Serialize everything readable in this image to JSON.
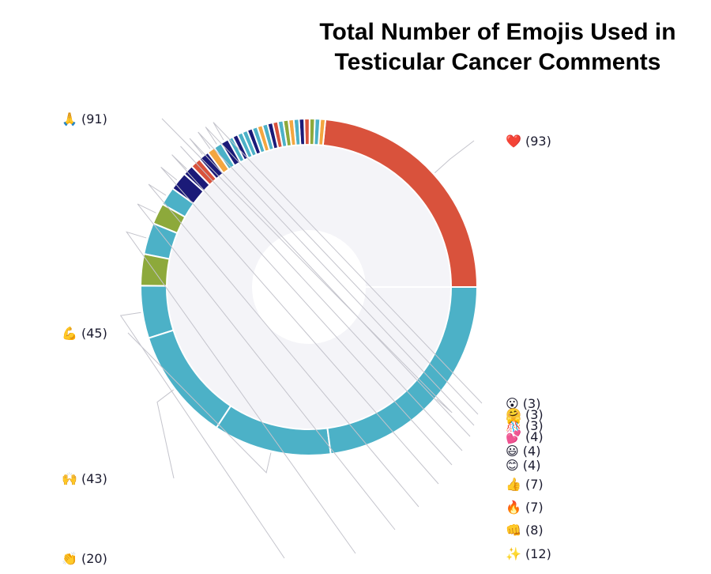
{
  "chart_data": {
    "type": "pie",
    "title_lines": [
      "Total Number of Emojis Used in",
      "Testicular Cancer Comments"
    ],
    "slices": [
      {
        "emoji": "❤️",
        "value": 93,
        "label": "❤️ (93)",
        "color": "#d9523c"
      },
      {
        "emoji": "",
        "value": 2,
        "label": "",
        "color": "#f4a640"
      },
      {
        "emoji": "",
        "value": 2,
        "label": "",
        "color": "#4cb1c7"
      },
      {
        "emoji": "",
        "value": 2,
        "label": "",
        "color": "#8da93b"
      },
      {
        "emoji": "",
        "value": 2,
        "label": "",
        "color": "#d9523c"
      },
      {
        "emoji": "",
        "value": 2,
        "label": "",
        "color": "#1b1a78"
      },
      {
        "emoji": "",
        "value": 2,
        "label": "",
        "color": "#4cb1c7"
      },
      {
        "emoji": "",
        "value": 2,
        "label": "",
        "color": "#f4a640"
      },
      {
        "emoji": "",
        "value": 2,
        "label": "",
        "color": "#8da93b"
      },
      {
        "emoji": "",
        "value": 2,
        "label": "",
        "color": "#4cb1c7"
      },
      {
        "emoji": "",
        "value": 2,
        "label": "",
        "color": "#d9523c"
      },
      {
        "emoji": "",
        "value": 2,
        "label": "",
        "color": "#1b1a78"
      },
      {
        "emoji": "",
        "value": 2,
        "label": "",
        "color": "#4cb1c7"
      },
      {
        "emoji": "",
        "value": 2,
        "label": "",
        "color": "#f4a640"
      },
      {
        "emoji": "",
        "value": 2,
        "label": "",
        "color": "#4cb1c7"
      },
      {
        "emoji": "",
        "value": 2,
        "label": "",
        "color": "#1b1a78"
      },
      {
        "emoji": "",
        "value": 2,
        "label": "",
        "color": "#4cb1c7"
      },
      {
        "emoji": "",
        "value": 2,
        "label": "",
        "color": "#4cb1c7"
      },
      {
        "emoji": "",
        "value": 2,
        "label": "",
        "color": "#1b1a78"
      },
      {
        "emoji": "",
        "value": 2,
        "label": "",
        "color": "#4cb1c7"
      },
      {
        "emoji": "😮",
        "value": 3,
        "label": "😮 (3)",
        "color": "#1b1a78"
      },
      {
        "emoji": "🤗",
        "value": 3,
        "label": "🤗 (3)",
        "color": "#4cb1c7"
      },
      {
        "emoji": "🎊",
        "value": 3,
        "label": "🎊 (3)",
        "color": "#f4a640"
      },
      {
        "emoji": "💕",
        "value": 4,
        "label": "💕 (4)",
        "color": "#1b1a78"
      },
      {
        "emoji": "😃",
        "value": 4,
        "label": "😃 (4)",
        "color": "#d9523c"
      },
      {
        "emoji": "😊",
        "value": 4,
        "label": "😊 (4)",
        "color": "#1b1a78"
      },
      {
        "emoji": "👍",
        "value": 7,
        "label": "👍 (7)",
        "color": "#1b1a78"
      },
      {
        "emoji": "🔥",
        "value": 7,
        "label": "🔥 (7)",
        "color": "#4cb1c7"
      },
      {
        "emoji": "👊",
        "value": 8,
        "label": "👊 (8)",
        "color": "#8da93b"
      },
      {
        "emoji": "✨",
        "value": 12,
        "label": "✨ (12)",
        "color": "#4cb1c7"
      },
      {
        "emoji": "",
        "value": 12,
        "label": "",
        "color": "#8da93b"
      },
      {
        "emoji": "👏",
        "value": 20,
        "label": "👏 (20)",
        "color": "#4cb1c7"
      },
      {
        "emoji": "🙌",
        "value": 43,
        "label": "🙌 (43)",
        "color": "#4cb1c7"
      },
      {
        "emoji": "💪",
        "value": 45,
        "label": "💪 (45)",
        "color": "#4cb1c7"
      },
      {
        "emoji": "🙏",
        "value": 91,
        "label": "🙏 (91)",
        "color": "#4cb1c7"
      }
    ]
  }
}
